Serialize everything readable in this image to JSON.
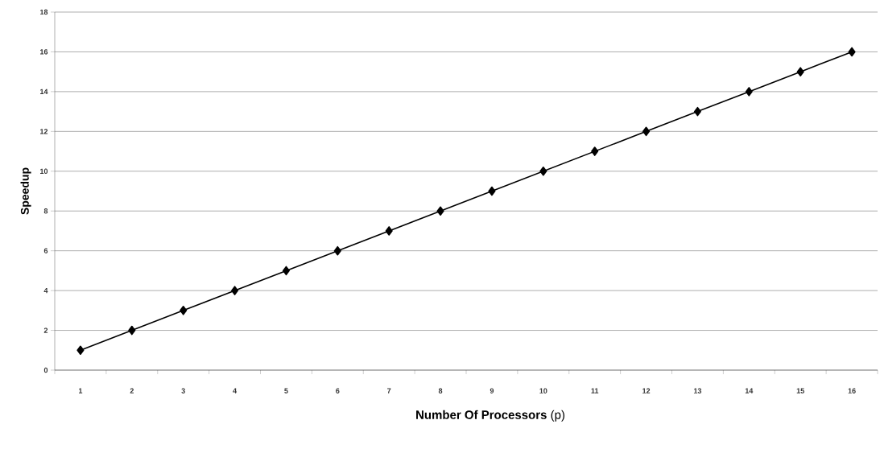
{
  "chart_data": {
    "type": "line",
    "xlabel": "**Number Of Processors**     (p)",
    "ylabel": "Speedup",
    "categories": [
      "1",
      "2",
      "3",
      "4",
      "5",
      "6",
      "7",
      "8",
      "9",
      "10",
      "11",
      "12",
      "13",
      "14",
      "15",
      "16"
    ],
    "series": [
      {
        "color": "#000000",
        "values": [
          1,
          2,
          3,
          4,
          5,
          6,
          7,
          8,
          9,
          10,
          11,
          12,
          13,
          14,
          15,
          16
        ]
      }
    ],
    "ylim": [
      0,
      18
    ],
    "yticks": [
      0,
      2,
      4,
      6,
      8,
      10,
      12,
      14,
      16,
      18
    ],
    "grid": "y",
    "marker": "diamond",
    "line_style": "solid"
  }
}
